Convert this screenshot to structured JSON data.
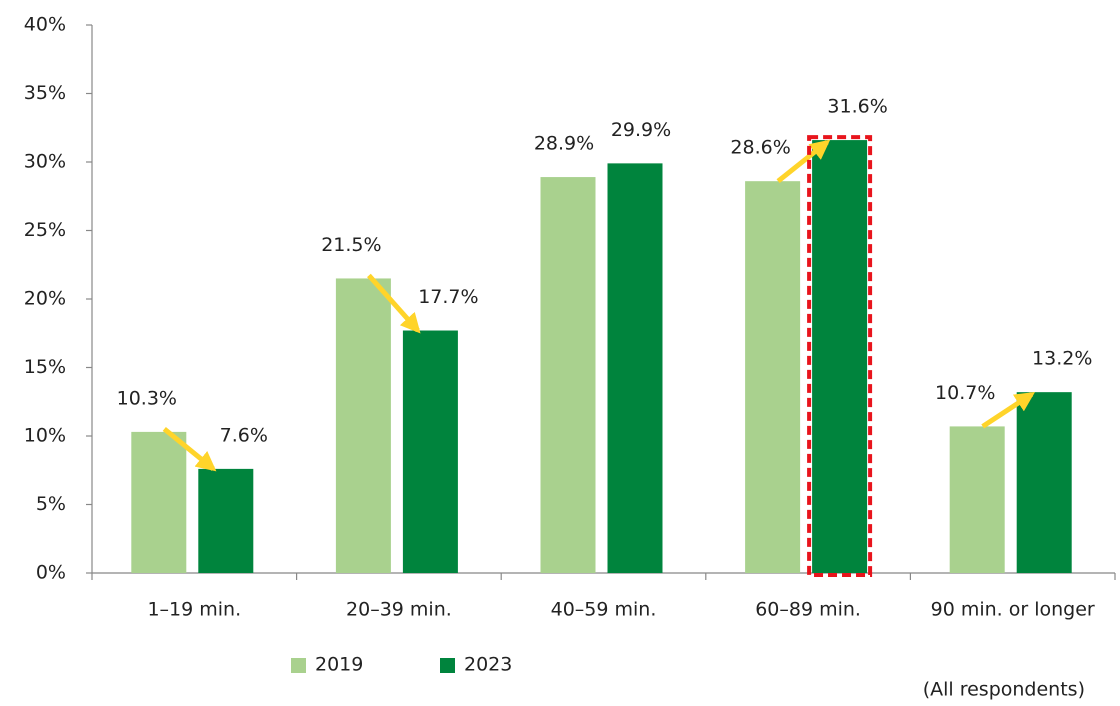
{
  "chart_data": {
    "type": "bar",
    "categories": [
      "1–19 min.",
      "20–39 min.",
      "40–59 min.",
      "60–89 min.",
      "90 min. or longer"
    ],
    "series": [
      {
        "name": "2019",
        "color": "#a9d18e",
        "values": [
          10.3,
          21.5,
          28.9,
          28.6,
          10.7
        ],
        "value_labels": [
          "10.3%",
          "21.5%",
          "28.9%",
          "28.6%",
          "10.7%"
        ]
      },
      {
        "name": "2023",
        "color": "#00843d",
        "values": [
          7.6,
          17.7,
          29.9,
          31.6,
          13.2
        ],
        "value_labels": [
          "7.6%",
          "17.7%",
          "29.9%",
          "31.6%",
          "13.2%"
        ]
      }
    ],
    "ylim": [
      0,
      40
    ],
    "yticks": [
      {
        "value": 0,
        "label": "0%"
      },
      {
        "value": 5,
        "label": "5%"
      },
      {
        "value": 10,
        "label": "10%"
      },
      {
        "value": 15,
        "label": "15%"
      },
      {
        "value": 20,
        "label": "20%"
      },
      {
        "value": 25,
        "label": "25%"
      },
      {
        "value": 30,
        "label": "30%"
      },
      {
        "value": 35,
        "label": "35%"
      },
      {
        "value": 40,
        "label": "40%"
      }
    ],
    "note": "(All respondents)"
  }
}
